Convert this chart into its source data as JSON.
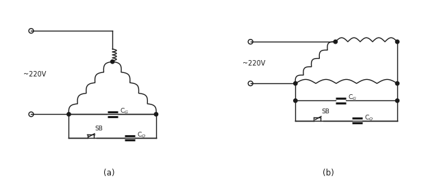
{
  "bg_color": "#ffffff",
  "line_color": "#1a1a1a",
  "lw": 1.0,
  "label_a": "(a)",
  "label_b": "(b)",
  "voltage_label": "~220V"
}
